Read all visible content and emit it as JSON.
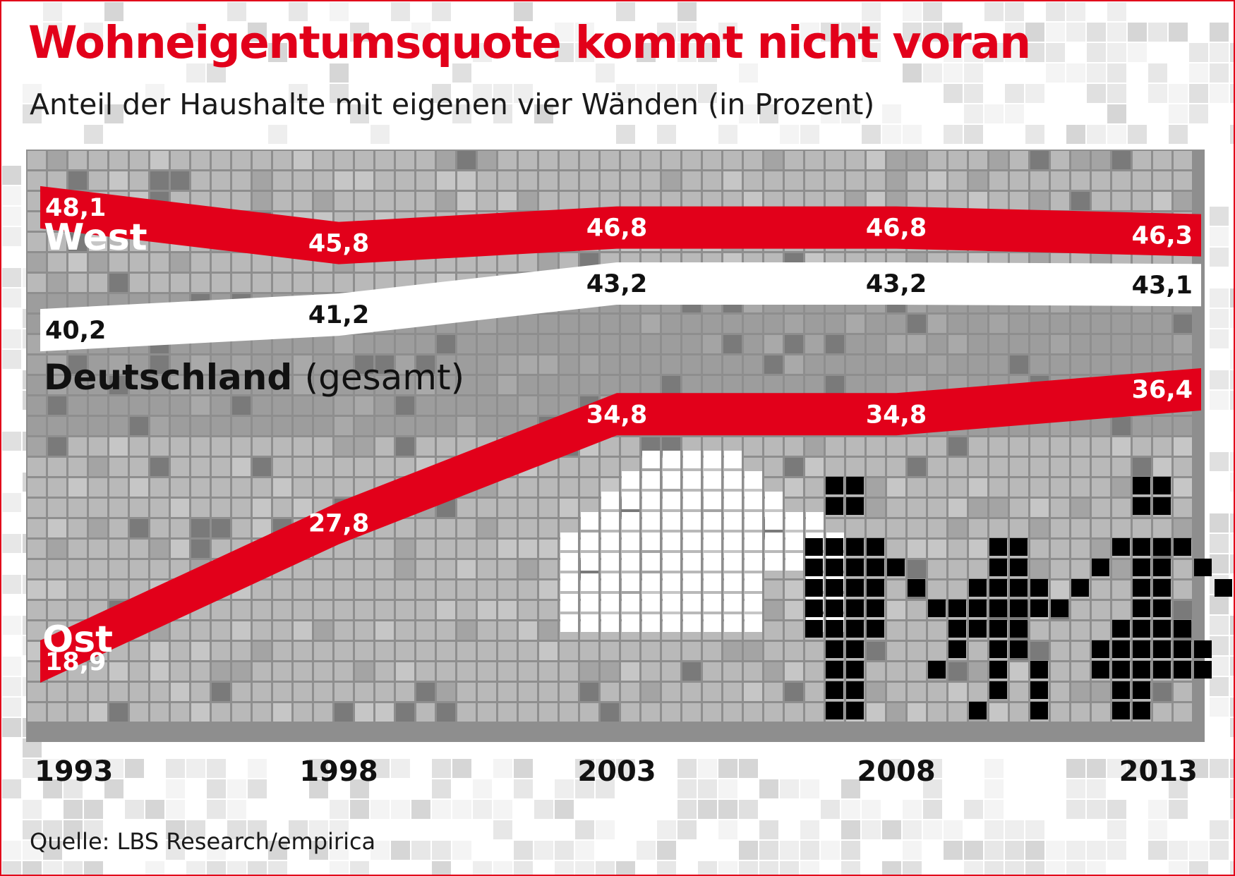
{
  "title": "Wohneigentumsquote kommt nicht voran",
  "subtitle": "Anteil der Haushalte mit eigenen vier Wänden (in Prozent)",
  "source": "Quelle: LBS Research/empirica",
  "colors": {
    "accent": "#e2001a",
    "west": "#e2001a",
    "ost": "#e2001a",
    "deutschland": "#ffffff",
    "text": "#111111"
  },
  "icons": [
    "house-icon",
    "family-icon"
  ],
  "chart_data": {
    "type": "line",
    "x": [
      "1993",
      "1998",
      "2003",
      "2008",
      "2013"
    ],
    "ylim": [
      16,
      50
    ],
    "grid": false,
    "series": [
      {
        "name": "West",
        "values": [
          48.1,
          45.8,
          46.8,
          46.8,
          46.3
        ],
        "labels": [
          "48,1",
          "45,8",
          "46,8",
          "46,8",
          "46,3"
        ]
      },
      {
        "name": "Deutschland",
        "name_suffix": "(gesamt)",
        "values": [
          40.2,
          41.2,
          43.2,
          43.2,
          43.1
        ],
        "labels": [
          "40,2",
          "41,2",
          "43,2",
          "43,2",
          "43,1"
        ]
      },
      {
        "name": "Ost",
        "values": [
          18.9,
          27.8,
          34.8,
          34.8,
          36.4
        ],
        "labels": [
          "18,9",
          "27,8",
          "34,8",
          "34,8",
          "36,4"
        ]
      }
    ]
  }
}
